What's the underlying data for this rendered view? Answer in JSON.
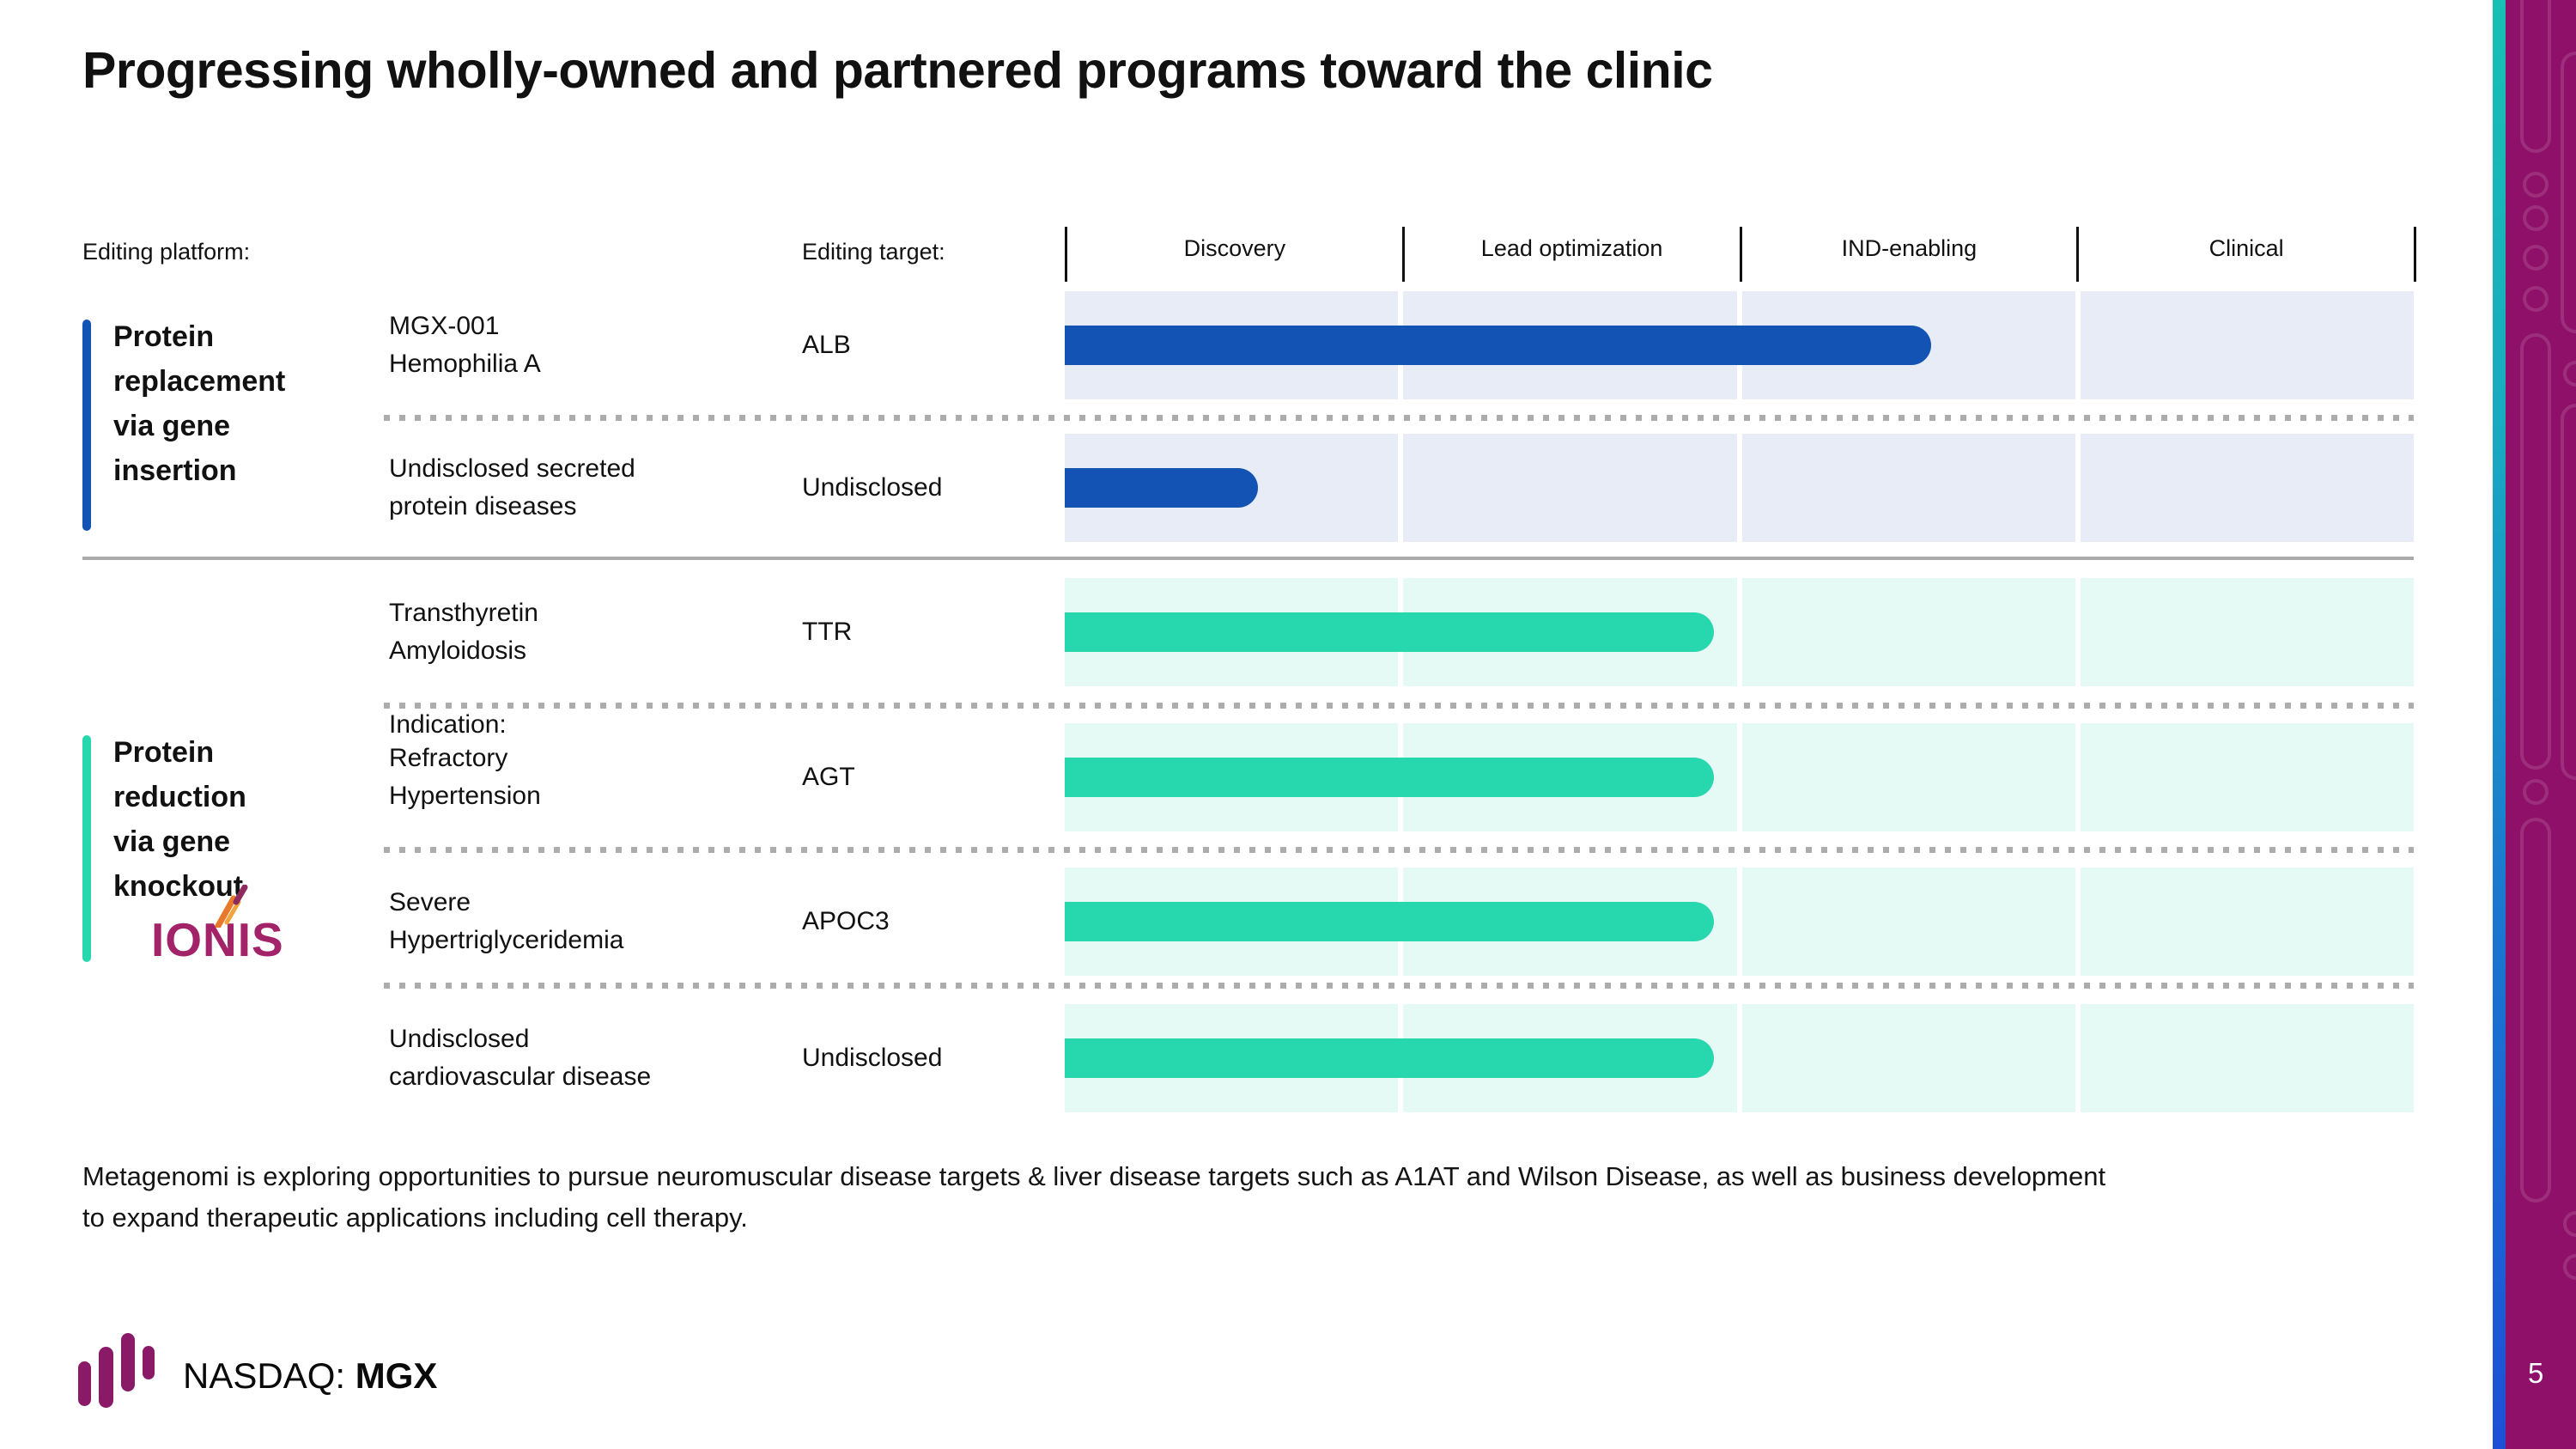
{
  "slide": {
    "title": "Progressing wholly-owned and partnered programs toward the clinic",
    "page_number": "5"
  },
  "pipeline": {
    "column_headers": {
      "platform": "Editing platform:",
      "indication": "Indication:",
      "target": "Editing target:"
    },
    "stages": [
      "Discovery",
      "Lead optimization",
      "IND-enabling",
      "Clinical"
    ],
    "groups": [
      {
        "label": "Protein\nreplacement\nvia gene\ninsertion",
        "accent_color": "#1353B4",
        "row_bg": "#E7ECF6",
        "bar_color": "#1353B4",
        "rows": [
          {
            "indication": "MGX-001\nHemophilia A",
            "target": "ALB",
            "progress_pct": 64.2
          },
          {
            "indication": "Undisclosed secreted\nprotein diseases",
            "target": "Undisclosed",
            "progress_pct": 14.3
          }
        ]
      },
      {
        "label": "Protein\nreduction\nvia gene\nknockout",
        "partner_logo": "IONIS",
        "accent_color": "#27D7AD",
        "row_bg": "#E5F9F5",
        "bar_color": "#27D7AD",
        "rows": [
          {
            "indication": "Transthyretin\nAmyloidosis",
            "target": "TTR",
            "progress_pct": 48.1
          },
          {
            "indication": "Refractory\nHypertension",
            "target": "AGT",
            "progress_pct": 48.1
          },
          {
            "indication": "Severe\nHypertriglyceridemia",
            "target": "APOC3",
            "progress_pct": 48.1
          },
          {
            "indication": "Undisclosed\ncardiovascular disease",
            "target": "Undisclosed",
            "progress_pct": 48.1
          }
        ]
      }
    ]
  },
  "chart_data": {
    "type": "bar",
    "title": "Progressing wholly-owned and partnered programs toward the clinic",
    "stages": [
      "Discovery",
      "Lead optimization",
      "IND-enabling",
      "Clinical"
    ],
    "xlim": [
      0,
      4
    ],
    "series": [
      {
        "program": "MGX-001 Hemophilia A",
        "target": "ALB",
        "group": "Protein replacement via gene insertion",
        "progress_stages": 2.57
      },
      {
        "program": "Undisclosed secreted protein diseases",
        "target": "Undisclosed",
        "group": "Protein replacement via gene insertion",
        "progress_stages": 0.57
      },
      {
        "program": "Transthyretin Amyloidosis",
        "target": "TTR",
        "group": "Protein reduction via gene knockout (IONIS)",
        "progress_stages": 1.92
      },
      {
        "program": "Refractory Hypertension",
        "target": "AGT",
        "group": "Protein reduction via gene knockout (IONIS)",
        "progress_stages": 1.92
      },
      {
        "program": "Severe Hypertriglyceridemia",
        "target": "APOC3",
        "group": "Protein reduction via gene knockout (IONIS)",
        "progress_stages": 1.92
      },
      {
        "program": "Undisclosed cardiovascular disease",
        "target": "Undisclosed",
        "group": "Protein reduction via gene knockout (IONIS)",
        "progress_stages": 1.92
      }
    ]
  },
  "footnote": "Metagenomi is exploring opportunities to pursue neuromuscular disease targets & liver disease targets such as A1AT and Wilson Disease, as well as business development to expand therapeutic applications including cell therapy.",
  "footer": {
    "nasdaq_prefix": "NASDAQ: ",
    "ticker": "MGX"
  },
  "colors": {
    "blue_bar": "#1353B4",
    "blue_row_bg": "#E7ECF6",
    "teal_bar": "#27D7AD",
    "teal_row_bg": "#E5F9F5",
    "ionis_magenta": "#A32368",
    "edge_band_magenta": "#8E1068",
    "edge_stripe_top": "#17C0B2",
    "edge_stripe_bottom": "#1D4FD6",
    "footer_purple": "#8A1A68",
    "separator_gray": "#ABABAB"
  }
}
